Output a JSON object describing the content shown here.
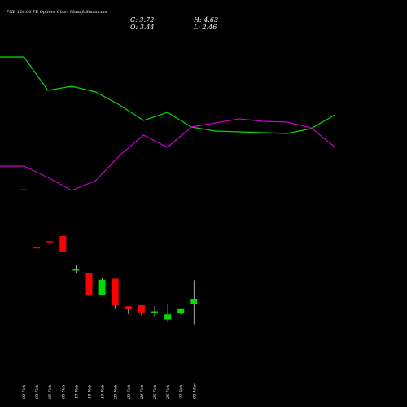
{
  "title": "PNB 126.00 PE Options Chart MunafaSutra.com",
  "ohlc": {
    "close": "C: 3.72",
    "high": "H: 4.63",
    "open": "O: 3.44",
    "low": "L: 2.46"
  },
  "chart_data": {
    "type": "candlestick",
    "categories": [
      "02 Feb",
      "03 Feb",
      "05 Feb",
      "06 Feb",
      "17 Feb",
      "18 Feb",
      "19 Feb",
      "20 Feb",
      "23 Feb",
      "24 Feb",
      "25 Feb",
      "26 Feb",
      "27 Feb",
      "02 Mar"
    ],
    "candles": [
      {
        "open": 9.1,
        "high": 9.1,
        "low": 9.05,
        "close": 9.05
      },
      {
        "open": 6.25,
        "high": 6.25,
        "low": 6.2,
        "close": 6.2
      },
      {
        "open": 6.55,
        "high": 6.55,
        "low": 6.5,
        "close": 6.5
      },
      {
        "open": 6.8,
        "high": 6.8,
        "low": 6.0,
        "close": 6.0
      },
      {
        "open": 5.1,
        "high": 5.4,
        "low": 5.0,
        "close": 5.2
      },
      {
        "open": 5.0,
        "high": 5.0,
        "low": 3.9,
        "close": 3.9
      },
      {
        "open": 3.9,
        "high": 4.75,
        "low": 3.9,
        "close": 4.65
      },
      {
        "open": 4.7,
        "high": 4.7,
        "low": 3.2,
        "close": 3.4
      },
      {
        "open": 3.35,
        "high": 3.35,
        "low": 2.95,
        "close": 3.2
      },
      {
        "open": 3.4,
        "high": 3.4,
        "low": 2.9,
        "close": 3.05
      },
      {
        "open": 3.0,
        "high": 3.35,
        "low": 2.85,
        "close": 3.1
      },
      {
        "open": 2.7,
        "high": 3.45,
        "low": 2.6,
        "close": 2.95
      },
      {
        "open": 3.0,
        "high": 3.25,
        "low": 2.95,
        "close": 3.25
      },
      {
        "open": 3.44,
        "high": 4.63,
        "low": 2.46,
        "close": 3.72
      }
    ],
    "colors": {
      "up": "#00dd00",
      "down": "#ff0000",
      "green_line": "#00dd00",
      "purple_line": "#cc00cc"
    },
    "green_line_x": [
      0,
      1,
      2,
      3,
      4,
      5,
      6,
      7,
      8,
      9,
      10,
      11,
      12,
      13,
      14
    ],
    "green_line_y": [
      70,
      70,
      111,
      106,
      113,
      129,
      148,
      138,
      156,
      161,
      162,
      163,
      164,
      158,
      141
    ],
    "purple_line_x": [
      0,
      1,
      2,
      3,
      4,
      5,
      6,
      7,
      8,
      9,
      10,
      11,
      12,
      13,
      14
    ],
    "purple_line_y": [
      204,
      204,
      218,
      234,
      222,
      191,
      166,
      181,
      156,
      151,
      146,
      149,
      150,
      157,
      181
    ],
    "ylim": [
      0,
      12
    ]
  }
}
